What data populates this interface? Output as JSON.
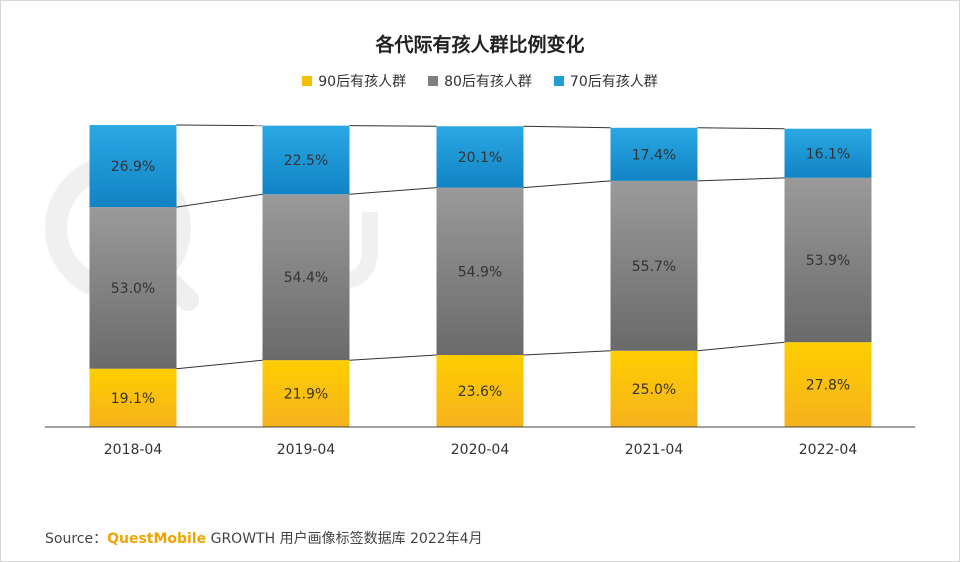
{
  "chart_data": {
    "type": "bar",
    "stacked": true,
    "title": "各代际有孩人群比例变化",
    "categories": [
      "2018-04",
      "2019-04",
      "2020-04",
      "2021-04",
      "2022-04"
    ],
    "series": [
      {
        "name": "90后有孩人群",
        "values": [
          19.1,
          21.9,
          23.6,
          25.0,
          27.8
        ],
        "labels": [
          "19.1%",
          "21.9%",
          "23.6%",
          "25.0%",
          "27.8%"
        ],
        "color": "#f6c000"
      },
      {
        "name": "80后有孩人群",
        "values": [
          53.0,
          54.4,
          54.9,
          55.7,
          53.9
        ],
        "labels": [
          "53.0%",
          "54.4%",
          "54.9%",
          "55.7%",
          "53.9%"
        ],
        "color": "#7f7f7f"
      },
      {
        "name": "70后有孩人群",
        "values": [
          26.9,
          22.5,
          20.1,
          17.4,
          16.1
        ],
        "labels": [
          "26.9%",
          "22.5%",
          "20.1%",
          "17.4%",
          "16.1%"
        ],
        "color": "#1f9ed8"
      }
    ],
    "ylim": [
      0,
      100
    ],
    "legend_position": "top",
    "connector_lines": true
  },
  "source": {
    "prefix": "Source：",
    "brand": "QuestMobile",
    "text": "GROWTH 用户画像标签数据库 2022年4月"
  }
}
